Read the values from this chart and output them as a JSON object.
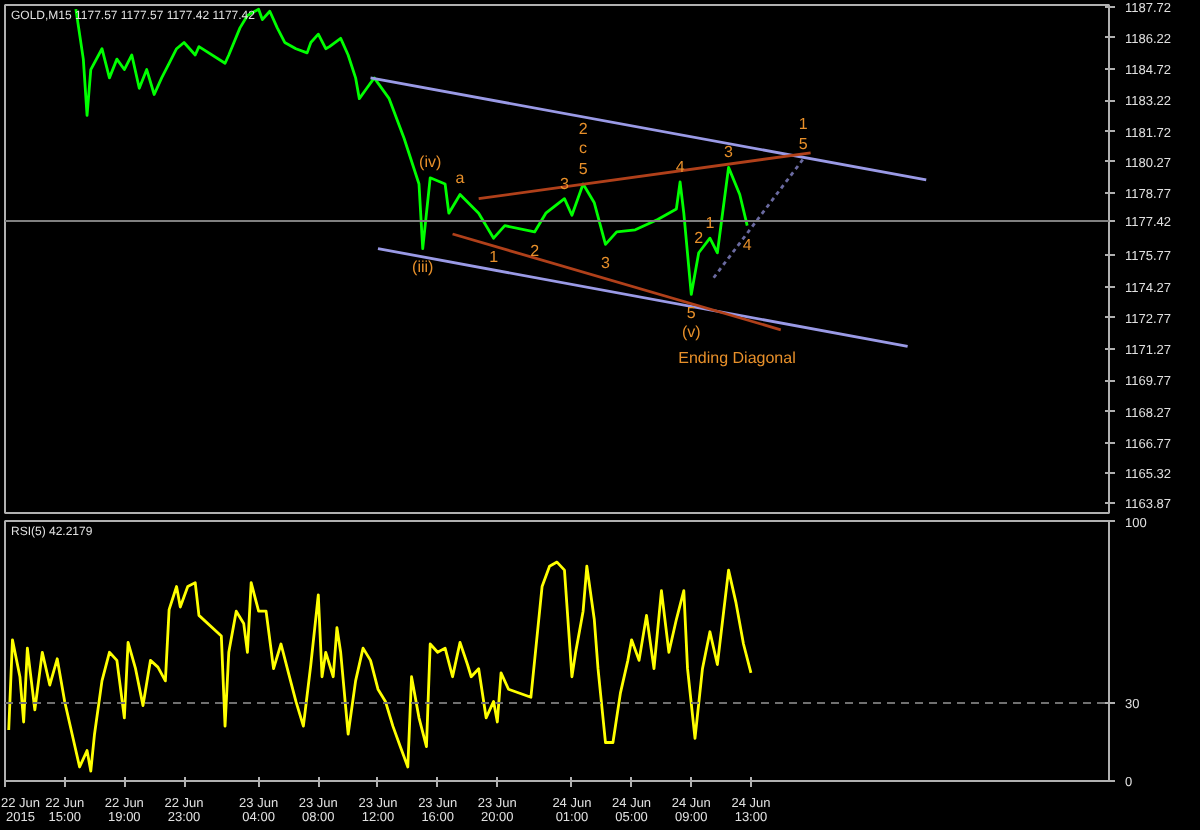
{
  "chart_data": [
    {
      "type": "line",
      "title": "GOLD,M15 1177.57 1177.57 1177.42 1177.42",
      "xlim": [
        "2015-06-22T11:00",
        "2015-06-25T13:00"
      ],
      "ylim": [
        1163.4,
        1187.8
      ],
      "yticks": [
        1163.87,
        1165.32,
        1166.77,
        1168.27,
        1169.77,
        1171.27,
        1172.77,
        1174.27,
        1175.77,
        1178.77,
        1180.27,
        1181.72,
        1183.22,
        1184.72,
        1186.22,
        1187.72
      ],
      "tick_labels": "y",
      "series": [
        {
          "color": "#00ff00",
          "x": [
            "2015-06-22T15:45",
            "2015-06-22T16:15",
            "2015-06-22T16:30",
            "2015-06-22T16:45",
            "2015-06-22T17:30",
            "2015-06-22T18:00",
            "2015-06-22T18:30",
            "2015-06-22T19:00",
            "2015-06-22T19:30",
            "2015-06-22T20:00",
            "2015-06-22T20:30",
            "2015-06-22T21:00",
            "2015-06-22T21:30",
            "2015-06-22T22:00",
            "2015-06-22T22:30",
            "2015-06-22T23:00",
            "2015-06-22T23:45",
            "2015-06-23T00:00",
            "2015-06-23T01:45",
            "2015-06-23T02:00",
            "2015-06-23T02:45",
            "2015-06-23T03:15",
            "2015-06-23T04:00",
            "2015-06-23T04:15",
            "2015-06-23T04:45",
            "2015-06-23T05:15",
            "2015-06-23T05:45",
            "2015-06-23T06:30",
            "2015-06-23T07:15",
            "2015-06-23T07:30",
            "2015-06-23T08:00",
            "2015-06-23T08:30",
            "2015-06-23T08:45",
            "2015-06-23T09:30",
            "2015-06-23T10:00",
            "2015-06-23T10:30",
            "2015-06-23T10:45",
            "2015-06-23T11:15",
            "2015-06-23T11:45",
            "2015-06-23T12:45",
            "2015-06-23T13:45",
            "2015-06-23T14:45",
            "2015-06-23T15:00",
            "2015-06-23T15:30",
            "2015-06-23T16:30",
            "2015-06-23T16:45",
            "2015-06-23T17:30",
            "2015-06-23T18:45",
            "2015-06-23T19:45",
            "2015-06-23T20:30",
            "2015-06-23T22:30",
            "2015-06-23T23:15",
            "2015-06-24T00:30",
            "2015-06-24T01:00",
            "2015-06-24T01:45",
            "2015-06-24T02:30",
            "2015-06-24T03:15",
            "2015-06-24T04:00",
            "2015-06-24T05:15",
            "2015-06-24T06:45",
            "2015-06-24T08:00",
            "2015-06-24T08:15",
            "2015-06-24T08:30",
            "2015-06-24T09:00",
            "2015-06-24T09:30",
            "2015-06-24T10:15",
            "2015-06-24T10:45",
            "2015-06-24T11:30",
            "2015-06-24T12:15",
            "2015-06-24T12:45"
          ],
          "values": [
            1187.6,
            1185.2,
            1182.5,
            1184.7,
            1185.7,
            1184.3,
            1185.2,
            1184.7,
            1185.4,
            1183.8,
            1184.7,
            1183.5,
            1184.3,
            1185.0,
            1185.7,
            1186.0,
            1185.4,
            1185.8,
            1185.0,
            1185.4,
            1186.7,
            1187.3,
            1187.6,
            1187.1,
            1187.5,
            1186.7,
            1186.0,
            1185.7,
            1185.5,
            1186.0,
            1186.4,
            1185.7,
            1185.8,
            1186.2,
            1185.4,
            1184.3,
            1183.3,
            1183.8,
            1184.3,
            1183.3,
            1181.4,
            1179.2,
            1176.1,
            1179.5,
            1179.2,
            1177.8,
            1178.7,
            1177.8,
            1176.6,
            1177.2,
            1176.9,
            1177.8,
            1178.5,
            1177.7,
            1179.2,
            1178.3,
            1176.3,
            1176.9,
            1177.0,
            1177.5,
            1178.0,
            1179.3,
            1177.8,
            1173.9,
            1175.9,
            1176.6,
            1175.9,
            1180.0,
            1178.7,
            1177.2
          ]
        },
        {
          "color": "#9a9ae6",
          "x": [
            "2015-06-23T11:30",
            "2015-06-25T00:45"
          ],
          "values": [
            1184.3,
            1179.4
          ]
        },
        {
          "color": "#9a9ae6",
          "x": [
            "2015-06-23T12:00",
            "2015-06-24T23:30"
          ],
          "values": [
            1176.1,
            1171.4
          ]
        },
        {
          "color": "#b0401a",
          "x": [
            "2015-06-23T18:45",
            "2015-06-24T17:00"
          ],
          "values": [
            1178.5,
            1180.7
          ]
        },
        {
          "color": "#b0401a",
          "x": [
            "2015-06-23T17:00",
            "2015-06-24T15:00"
          ],
          "values": [
            1176.8,
            1172.2
          ]
        },
        {
          "color": "#6a6aa0",
          "x": [
            "2015-06-24T10:30",
            "2015-06-24T16:30"
          ],
          "values": [
            1174.7,
            1180.4
          ],
          "line_style": "dotted"
        }
      ],
      "ref_lines": [
        {
          "axis": "y",
          "value": 1177.42,
          "label": "1177.42",
          "color": "#808080"
        }
      ],
      "annotations": [
        {
          "text": "(iv)",
          "x": "2015-06-23T15:30",
          "y": 1179.5
        },
        {
          "text": "a",
          "x": "2015-06-23T17:30",
          "y": 1178.7
        },
        {
          "text": "5",
          "x": "2015-06-24T01:45",
          "y": 1179.2
        },
        {
          "text": "c",
          "x": "2015-06-24T01:45",
          "y": 1179.2
        },
        {
          "text": "2",
          "x": "2015-06-24T01:45",
          "y": 1179.2
        },
        {
          "text": "3",
          "x": "2015-06-24T00:30",
          "y": 1178.5
        },
        {
          "text": "4",
          "x": "2015-06-24T08:15",
          "y": 1179.3
        },
        {
          "text": "3",
          "x": "2015-06-24T11:30",
          "y": 1180.0
        },
        {
          "text": "5",
          "x": "2015-06-24T16:30",
          "y": 1180.4
        },
        {
          "text": "1",
          "x": "2015-06-24T16:30",
          "y": 1180.4
        },
        {
          "text": "(iii)",
          "x": "2015-06-23T15:00",
          "y": 1176.1
        },
        {
          "text": "1",
          "x": "2015-06-23T19:45",
          "y": 1176.6
        },
        {
          "text": "2",
          "x": "2015-06-23T22:30",
          "y": 1176.9
        },
        {
          "text": "3",
          "x": "2015-06-24T03:15",
          "y": 1176.3
        },
        {
          "text": "5",
          "x": "2015-06-24T09:00",
          "y": 1173.9
        },
        {
          "text": "(v)",
          "x": "2015-06-24T09:00",
          "y": 1173.9
        },
        {
          "text": "1",
          "x": "2015-06-24T10:15",
          "y": 1176.6
        },
        {
          "text": "2",
          "x": "2015-06-24T09:30",
          "y": 1175.9
        },
        {
          "text": "4",
          "x": "2015-06-24T12:45",
          "y": 1177.2
        },
        "Ending Diagonal"
      ]
    },
    {
      "type": "line",
      "title": "RSI(5) 42.2179",
      "xlim": [
        "2015-06-22T11:00",
        "2015-06-25T13:00"
      ],
      "ylim": [
        0,
        100
      ],
      "yticks": [
        0,
        30,
        100
      ],
      "xticks": [
        {
          "value": "2015-06-22T11:00",
          "label": "22 Jun 2015"
        },
        {
          "value": "2015-06-22T15:00",
          "label": "22 Jun 15:00"
        },
        {
          "value": "2015-06-22T19:00",
          "label": "22 Jun 19:00"
        },
        {
          "value": "2015-06-22T23:00",
          "label": "22 Jun 23:00"
        },
        {
          "value": "2015-06-23T04:00",
          "label": "23 Jun 04:00"
        },
        {
          "value": "2015-06-23T08:00",
          "label": "23 Jun 08:00"
        },
        {
          "value": "2015-06-23T12:00",
          "label": "23 Jun 12:00"
        },
        {
          "value": "2015-06-23T16:00",
          "label": "23 Jun 16:00"
        },
        {
          "value": "2015-06-23T20:00",
          "label": "23 Jun 20:00"
        },
        {
          "value": "2015-06-24T01:00",
          "label": "24 Jun 01:00"
        },
        {
          "value": "2015-06-24T05:00",
          "label": "24 Jun 05:00"
        },
        {
          "value": "2015-06-24T09:00",
          "label": "24 Jun 09:00"
        },
        {
          "value": "2015-06-24T13:00",
          "label": "24 Jun 13:00"
        }
      ],
      "ref_lines": [
        {
          "axis": "y",
          "value": 30,
          "color": "#707070",
          "line_style": "dashed"
        }
      ],
      "series": [
        {
          "color": "#ffff00",
          "x": [
            "2015-06-22T11:15",
            "2015-06-22T11:30",
            "2015-06-22T12:00",
            "2015-06-22T12:15",
            "2015-06-22T12:30",
            "2015-06-22T13:00",
            "2015-06-22T13:30",
            "2015-06-22T14:00",
            "2015-06-22T14:30",
            "2015-06-22T15:00",
            "2015-06-22T15:30",
            "2015-06-22T16:00",
            "2015-06-22T16:30",
            "2015-06-22T16:45",
            "2015-06-22T17:00",
            "2015-06-22T17:30",
            "2015-06-22T18:00",
            "2015-06-22T18:30",
            "2015-06-22T19:00",
            "2015-06-22T19:15",
            "2015-06-22T19:45",
            "2015-06-22T20:15",
            "2015-06-22T20:45",
            "2015-06-22T21:15",
            "2015-06-22T21:45",
            "2015-06-22T22:00",
            "2015-06-22T22:30",
            "2015-06-22T22:45",
            "2015-06-22T23:15",
            "2015-06-22T23:45",
            "2015-06-23T00:00",
            "2015-06-23T01:30",
            "2015-06-23T01:45",
            "2015-06-23T02:00",
            "2015-06-23T02:30",
            "2015-06-23T03:00",
            "2015-06-23T03:15",
            "2015-06-23T03:30",
            "2015-06-23T04:00",
            "2015-06-23T04:30",
            "2015-06-23T05:00",
            "2015-06-23T05:30",
            "2015-06-23T06:00",
            "2015-06-23T06:30",
            "2015-06-23T07:00",
            "2015-06-23T07:30",
            "2015-06-23T08:00",
            "2015-06-23T08:15",
            "2015-06-23T08:30",
            "2015-06-23T09:00",
            "2015-06-23T09:15",
            "2015-06-23T09:30",
            "2015-06-23T10:00",
            "2015-06-23T10:30",
            "2015-06-23T11:00",
            "2015-06-23T11:30",
            "2015-06-23T12:00",
            "2015-06-23T12:30",
            "2015-06-23T13:00",
            "2015-06-23T13:30",
            "2015-06-23T14:00",
            "2015-06-23T14:15",
            "2015-06-23T14:45",
            "2015-06-23T15:15",
            "2015-06-23T15:30",
            "2015-06-23T16:00",
            "2015-06-23T16:30",
            "2015-06-23T17:00",
            "2015-06-23T17:30",
            "2015-06-23T18:00",
            "2015-06-23T18:15",
            "2015-06-23T18:45",
            "2015-06-23T19:15",
            "2015-06-23T19:45",
            "2015-06-23T20:00",
            "2015-06-23T20:15",
            "2015-06-23T20:45",
            "2015-06-23T22:15",
            "2015-06-23T23:00",
            "2015-06-23T23:30",
            "2015-06-24T00:00",
            "2015-06-24T00:30",
            "2015-06-24T01:00",
            "2015-06-24T01:15",
            "2015-06-24T01:45",
            "2015-06-24T02:00",
            "2015-06-24T02:30",
            "2015-06-24T02:45",
            "2015-06-24T03:15",
            "2015-06-24T03:45",
            "2015-06-24T04:15",
            "2015-06-24T04:45",
            "2015-06-24T05:00",
            "2015-06-24T05:30",
            "2015-06-24T06:00",
            "2015-06-24T06:30",
            "2015-06-24T07:00",
            "2015-06-24T07:30",
            "2015-06-24T08:00",
            "2015-06-24T08:30",
            "2015-06-24T08:45",
            "2015-06-24T09:15",
            "2015-06-24T09:45",
            "2015-06-24T10:15",
            "2015-06-24T10:45",
            "2015-06-24T11:30",
            "2015-06-24T12:00",
            "2015-06-24T12:30",
            "2015-06-24T13:00"
          ],
          "values": [
            19.6,
            54.3,
            40.1,
            22.7,
            51.1,
            27.4,
            49.5,
            36.9,
            47.0,
            30.6,
            18.0,
            5.4,
            11.7,
            3.8,
            18.0,
            38.5,
            49.5,
            46.4,
            24.3,
            53.3,
            43.2,
            29.0,
            46.4,
            43.8,
            38.5,
            65.9,
            74.8,
            66.9,
            74.8,
            76.3,
            63.7,
            55.8,
            21.1,
            49.5,
            65.3,
            60.6,
            49.5,
            76.3,
            65.3,
            65.3,
            43.2,
            52.7,
            41.6,
            30.6,
            21.1,
            44.8,
            71.6,
            40.1,
            49.5,
            40.1,
            59.0,
            49.5,
            18.0,
            38.5,
            51.1,
            46.4,
            35.3,
            30.6,
            21.1,
            13.2,
            5.4,
            40.1,
            24.3,
            13.2,
            52.7,
            49.5,
            51.1,
            40.1,
            53.3,
            44.8,
            40.1,
            43.2,
            24.3,
            30.6,
            22.7,
            41.6,
            35.3,
            32.2,
            74.8,
            82.6,
            84.2,
            81.1,
            40.1,
            49.5,
            65.3,
            82.6,
            62.1,
            43.2,
            14.8,
            14.8,
            33.8,
            46.4,
            54.3,
            46.4,
            63.7,
            43.2,
            73.2,
            49.5,
            62.1,
            73.2,
            43.2,
            16.4,
            43.2,
            57.4,
            44.8,
            81.1,
            68.5,
            52.7,
            41.6
          ]
        }
      ]
    }
  ]
}
